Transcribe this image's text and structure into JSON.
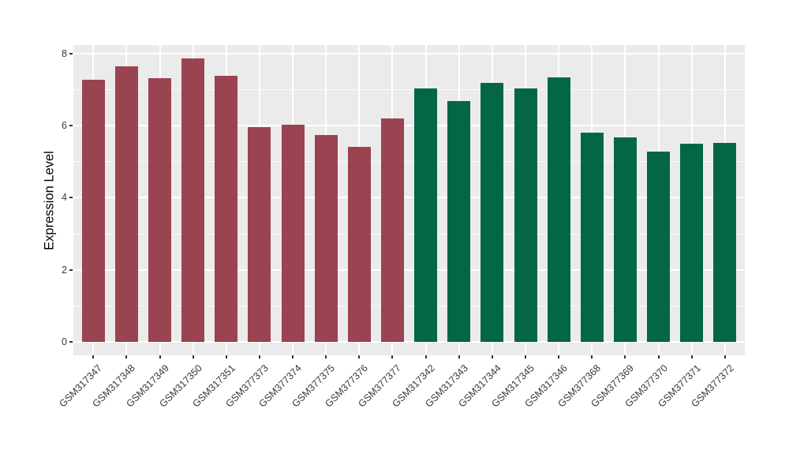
{
  "chart_data": {
    "type": "bar",
    "title": "",
    "xlabel": "",
    "ylabel": "Expression Level",
    "categories": [
      "GSM317347",
      "GSM317348",
      "GSM317349",
      "GSM317350",
      "GSM317351",
      "GSM377373",
      "GSM377374",
      "GSM377375",
      "GSM377376",
      "GSM377377",
      "GSM317342",
      "GSM317343",
      "GSM317344",
      "GSM317345",
      "GSM317346",
      "GSM377368",
      "GSM377369",
      "GSM377370",
      "GSM377371",
      "GSM377372"
    ],
    "values": [
      7.26,
      7.63,
      7.31,
      7.85,
      7.38,
      5.95,
      6.03,
      5.73,
      5.4,
      6.19,
      7.03,
      6.67,
      7.17,
      7.03,
      7.34,
      5.81,
      5.68,
      5.27,
      5.5,
      5.52
    ],
    "bar_groups": [
      "group1",
      "group1",
      "group1",
      "group1",
      "group1",
      "group1",
      "group1",
      "group1",
      "group1",
      "group1",
      "group2",
      "group2",
      "group2",
      "group2",
      "group2",
      "group2",
      "group2",
      "group2",
      "group2",
      "group2"
    ],
    "group_colors": {
      "group1": "#9A4351",
      "group2": "#026647"
    },
    "yticks": [
      0,
      2,
      4,
      6,
      8
    ],
    "ylim": [
      -0.37,
      8.23
    ],
    "grid": "on",
    "legend": "none",
    "panel_bg": "#EBEBEB",
    "grid_color": "#FFFFFF"
  }
}
